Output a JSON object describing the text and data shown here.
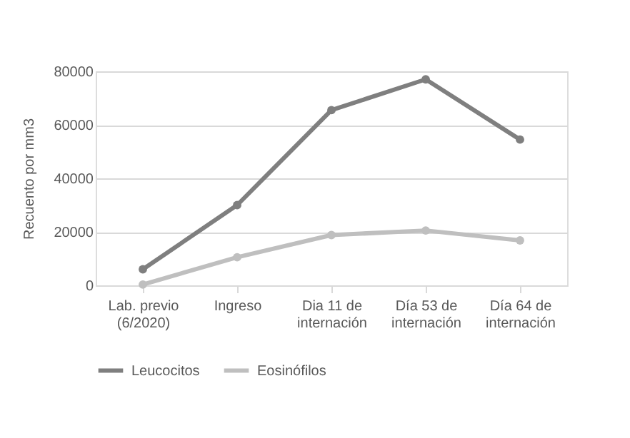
{
  "chart_data": {
    "type": "line",
    "ylabel": "Recuento por mm3",
    "categories": [
      "Lab. previo (6/2020)",
      "Ingreso",
      "Dia 11 de internación",
      "Día 53 de internación",
      "Día 64 de internación"
    ],
    "series": [
      {
        "name": "Leucocitos",
        "color": "#7f7f7f",
        "values": [
          6000,
          30000,
          65500,
          77000,
          54500
        ]
      },
      {
        "name": "Eosinófilos",
        "color": "#bfbfbf",
        "values": [
          300,
          10500,
          18800,
          20500,
          16800
        ]
      }
    ],
    "ylim": [
      0,
      80000
    ],
    "yticks": [
      0,
      20000,
      40000,
      60000,
      80000
    ],
    "grid": "y",
    "legend": "bottom",
    "marker": "circle",
    "line_style": "solid"
  }
}
